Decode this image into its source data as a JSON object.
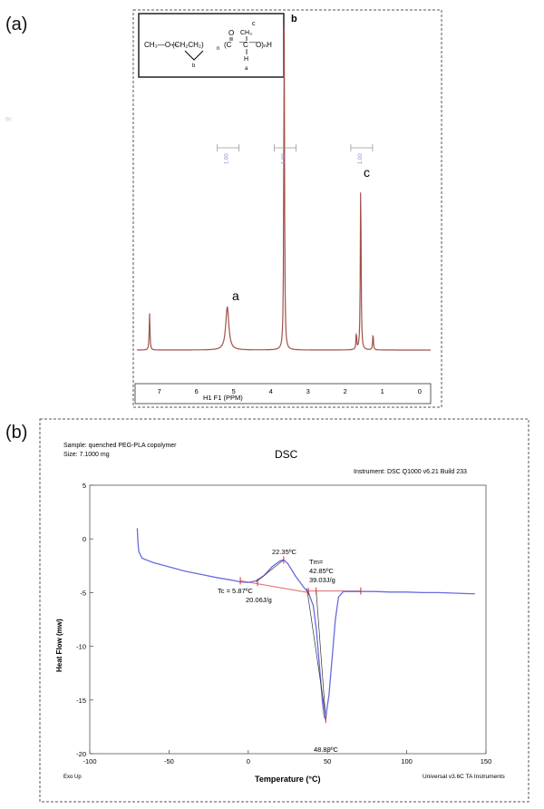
{
  "panels": {
    "a_label": "(a)",
    "b_label": "(b)"
  },
  "nmr": {
    "faint_mark": "(b)",
    "struct_labels": {
      "ch3o": "CH₃—O—",
      "ch2ch2": "(CH₂CH₂)",
      "n": "n",
      "c_open": "(C",
      "o": "O",
      "c_methine": "C",
      "oh": "O)ₙH",
      "ch3": "CH₃",
      "c_top": "c",
      "h": "H",
      "a": "a",
      "b": "b"
    },
    "peak_labels": {
      "a": "a",
      "b": "b",
      "c": "c"
    },
    "integrals": [
      "1.00",
      "1.00",
      "1.00"
    ],
    "x_ticks": [
      "7",
      "6",
      "5",
      "4",
      "3",
      "2",
      "1",
      "0"
    ],
    "xlabel": "H1 F1 (PPM)",
    "colors": {
      "line": "#a0524a",
      "integral": "#8888cc",
      "border": "#444444"
    }
  },
  "chart_data": [
    {
      "type": "line",
      "title": "",
      "xlabel": "H1 F1 (PPM)",
      "ylabel": "",
      "xlim": [
        7.6,
        -0.3
      ],
      "x_reversed": true,
      "series": [
        {
          "peaks": [
            {
              "label": "",
              "ppm": 7.26,
              "height": 0.11
            },
            {
              "label": "a",
              "ppm": 5.17,
              "height": 0.13
            },
            {
              "label": "b",
              "ppm": 3.64,
              "height": 1.0
            },
            {
              "label": "c",
              "ppm": 1.58,
              "height": 0.52
            },
            {
              "label": "",
              "ppm": 1.7,
              "height": 0.05
            },
            {
              "label": "",
              "ppm": 1.25,
              "height": 0.05
            }
          ]
        }
      ],
      "integrals": [
        {
          "ppm": 5.17,
          "value": "1.00"
        },
        {
          "ppm": 3.64,
          "value": "1.00"
        },
        {
          "ppm": 1.58,
          "value": "1.00"
        }
      ]
    },
    {
      "type": "line",
      "title": "DSC",
      "xlabel": "Temperature (°C)",
      "ylabel": "Heat Flow (mw)",
      "xlim": [
        -100,
        150
      ],
      "ylim": [
        -20,
        5
      ],
      "x_ticks": [
        -100,
        -50,
        0,
        50,
        100,
        150
      ],
      "y_ticks": [
        5,
        0,
        -5,
        -10,
        -15,
        -20
      ],
      "series": [
        {
          "x": [
            -70,
            -69.5,
            -69,
            -67,
            -60,
            -50,
            -40,
            -30,
            -20,
            -10,
            -5,
            0,
            5,
            10,
            15,
            20,
            22.35,
            25,
            30,
            35,
            38,
            41,
            43,
            45,
            47,
            48,
            48.89,
            49.5,
            51,
            53,
            55,
            57,
            60,
            70,
            80,
            90,
            100,
            110,
            120,
            130,
            140,
            143
          ],
          "y": [
            1.0,
            -0.5,
            -1.2,
            -1.8,
            -2.2,
            -2.6,
            -3.0,
            -3.3,
            -3.6,
            -3.85,
            -4.0,
            -4.05,
            -3.9,
            -3.4,
            -2.6,
            -2.05,
            -1.95,
            -2.3,
            -3.5,
            -4.5,
            -5.0,
            -6.2,
            -8.5,
            -12.0,
            -15.5,
            -16.6,
            -16.8,
            -16.0,
            -14.5,
            -11.0,
            -7.5,
            -5.4,
            -4.9,
            -4.9,
            -4.9,
            -4.95,
            -4.95,
            -5.0,
            -5.0,
            -5.05,
            -5.1,
            -5.1
          ]
        }
      ],
      "annotations": {
        "sample": "Sample:  quenched PEG-PLA  copolymer",
        "size": "Size:  7.1000 mg",
        "instrument": "Instrument: DSC  Q1000 v6.21 Build 233",
        "peak_top": "22.35ºC",
        "tm_label": "Tm=",
        "tm_value": "42.85ºC",
        "tm_enthalpy": "39.03J/g",
        "tc_label": "Tc = 5.87ºC",
        "tc_enthalpy": "20.06J/g",
        "peak_min": "48.89ºC",
        "exo_up": "Exo Up",
        "software": "Universal v3.6C TA Instruments"
      },
      "colors": {
        "curve": "#6a6ae0",
        "baseline": "#e06a6a",
        "marker": "#cc3333"
      }
    }
  ]
}
